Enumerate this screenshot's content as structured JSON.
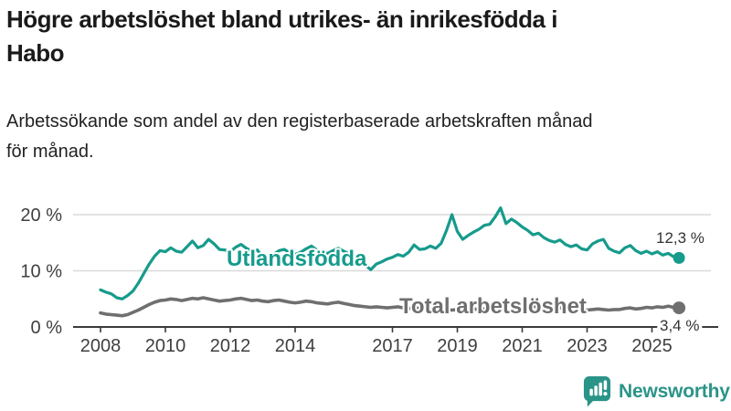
{
  "header": {
    "title_lines": [
      "Högre arbetslöshet bland utrikes- än inrikesfödda i",
      "Habo"
    ],
    "subtitle_lines": [
      "Arbetssökande som andel av den registerbaserade arbetskraften månad",
      "för månad."
    ]
  },
  "chart_data": {
    "type": "line",
    "title": "Högre arbetslöshet bland utrikes- än inrikesfödda i Habo",
    "subtitle": "Arbetssökande som andel av den registerbaserade arbetskraften månad för månad.",
    "x_start_year": 2008,
    "points_per_year": 6,
    "x_tick_years": [
      2008,
      2010,
      2012,
      2014,
      2017,
      2019,
      2021,
      2023,
      2025
    ],
    "xlim": [
      2007.2,
      2026.8
    ],
    "ylim": [
      0,
      22
    ],
    "grid": "horizontal",
    "legend_position": "inline-labels",
    "y_ticks": [
      {
        "value": 0,
        "label": "0 %"
      },
      {
        "value": 10,
        "label": "10 %"
      },
      {
        "value": 20,
        "label": "20 %"
      }
    ],
    "series": [
      {
        "name": "Utlandsfödda",
        "color": "#169B8C",
        "end_value": 12.3,
        "end_label": "12,3 %",
        "values": [
          6.6,
          6.2,
          5.9,
          5.2,
          5.0,
          5.6,
          6.4,
          7.8,
          9.5,
          11.2,
          12.6,
          13.6,
          13.4,
          14.1,
          13.5,
          13.3,
          14.3,
          15.3,
          14.1,
          14.5,
          15.6,
          14.8,
          13.8,
          13.7,
          13.4,
          14.2,
          14.7,
          14.0,
          13.5,
          13.7,
          12.4,
          12.1,
          12.9,
          13.6,
          13.8,
          13.2,
          12.9,
          13.3,
          13.9,
          14.4,
          13.7,
          13.3,
          13.1,
          13.6,
          14.0,
          13.5,
          13.0,
          12.5,
          11.8,
          11.0,
          10.2,
          11.2,
          11.6,
          12.1,
          12.4,
          12.9,
          12.6,
          13.3,
          14.6,
          13.8,
          13.9,
          14.4,
          14.0,
          14.9,
          17.2,
          20.0,
          17.0,
          15.6,
          16.3,
          16.9,
          17.4,
          18.1,
          18.3,
          19.6,
          21.2,
          18.4,
          19.2,
          18.6,
          17.8,
          17.2,
          16.4,
          16.7,
          15.9,
          15.4,
          15.1,
          15.5,
          14.7,
          14.3,
          14.6,
          13.9,
          13.7,
          14.8,
          15.3,
          15.6,
          14.0,
          13.5,
          13.2,
          14.1,
          14.5,
          13.6,
          13.1,
          13.5,
          13.0,
          13.4,
          12.8,
          13.1,
          12.5,
          12.3
        ]
      },
      {
        "name": "Total arbetslöshet",
        "color": "#6F6F6F",
        "end_value": 3.4,
        "end_label": "3,4 %",
        "values": [
          2.5,
          2.3,
          2.2,
          2.1,
          2.0,
          2.2,
          2.6,
          3.0,
          3.5,
          4.0,
          4.4,
          4.7,
          4.8,
          5.0,
          4.9,
          4.7,
          4.9,
          5.1,
          5.0,
          5.2,
          5.0,
          4.8,
          4.6,
          4.7,
          4.8,
          5.0,
          5.1,
          4.9,
          4.7,
          4.8,
          4.6,
          4.5,
          4.7,
          4.8,
          4.6,
          4.4,
          4.3,
          4.4,
          4.6,
          4.5,
          4.3,
          4.2,
          4.1,
          4.3,
          4.4,
          4.2,
          4.0,
          3.8,
          3.7,
          3.6,
          3.5,
          3.6,
          3.5,
          3.4,
          3.5,
          3.6,
          3.4,
          3.3,
          3.4,
          3.3,
          3.2,
          3.3,
          3.1,
          3.0,
          3.1,
          3.0,
          3.1,
          3.2,
          3.1,
          3.2,
          3.1,
          3.2,
          3.3,
          3.7,
          4.3,
          4.4,
          4.3,
          4.1,
          4.0,
          3.9,
          3.7,
          3.6,
          3.5,
          3.4,
          3.3,
          3.4,
          3.2,
          3.1,
          3.2,
          3.0,
          3.0,
          3.1,
          3.2,
          3.1,
          3.0,
          3.1,
          3.1,
          3.3,
          3.4,
          3.2,
          3.3,
          3.5,
          3.4,
          3.6,
          3.5,
          3.7,
          3.5,
          3.4
        ]
      }
    ]
  },
  "footer": {
    "brand": "Newsworthy",
    "brand_color": "#2A9488",
    "logo_icon": "bar-chart-speech-bubble"
  }
}
